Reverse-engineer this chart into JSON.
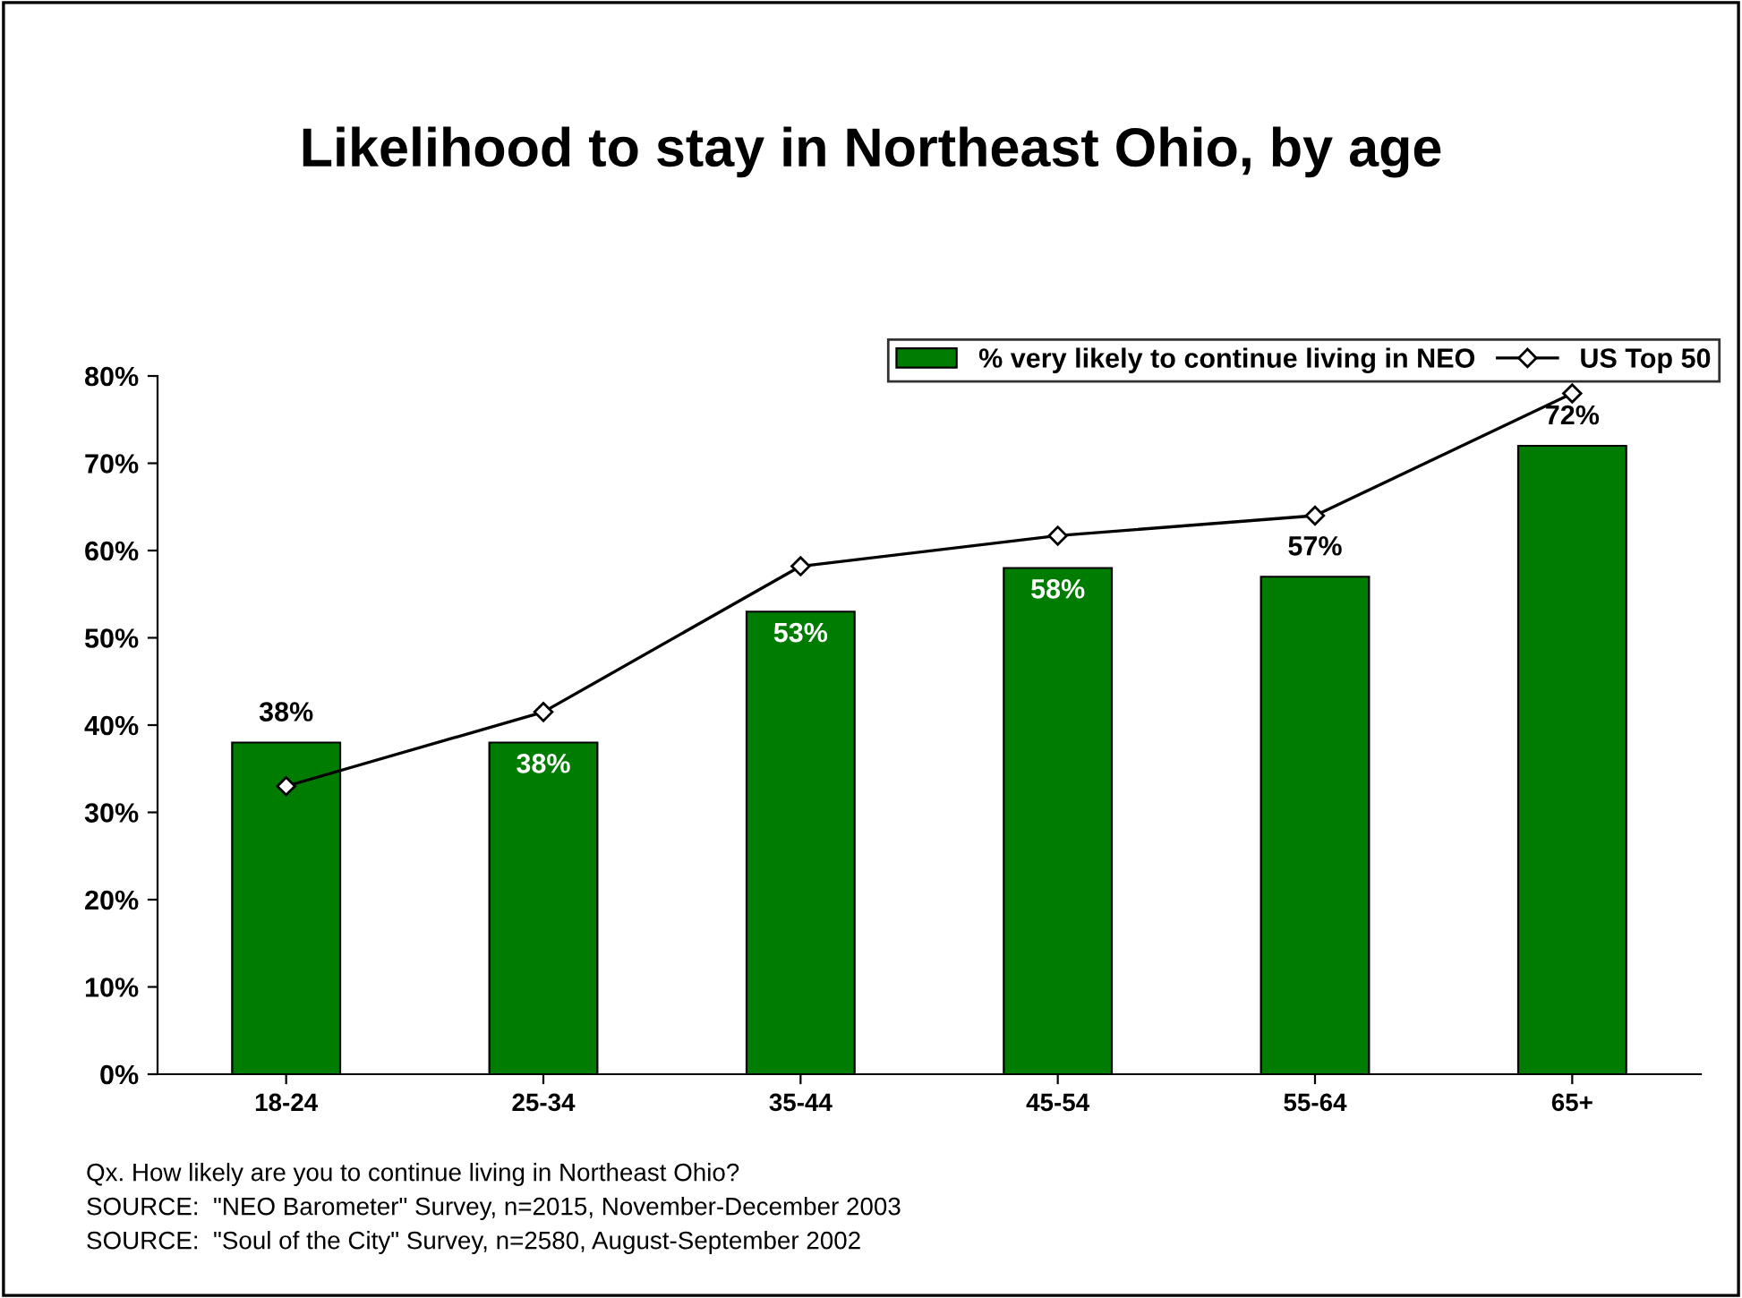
{
  "chart_data": {
    "type": "bar",
    "title": "Likelihood to stay in Northeast Ohio, by age",
    "categories": [
      "18-24",
      "25-34",
      "35-44",
      "45-54",
      "55-64",
      "65+"
    ],
    "series": [
      {
        "name": "% very likely to continue living in NEO",
        "color": "#007c00",
        "values": [
          38,
          38,
          53,
          58,
          57,
          72
        ],
        "value_labels": [
          "38%",
          "38%",
          "53%",
          "58%",
          "57%",
          "72%"
        ]
      },
      {
        "name": "US Top 50",
        "type": "line",
        "color": "#000000",
        "marker": "diamond",
        "values": [
          33,
          41.5,
          58.2,
          61.7,
          64,
          78
        ]
      }
    ],
    "ylim": [
      0,
      80
    ],
    "yticks": [
      {
        "value": 0,
        "label": "0%"
      },
      {
        "value": 10,
        "label": "10%"
      },
      {
        "value": 20,
        "label": "20%"
      },
      {
        "value": 30,
        "label": "30%"
      },
      {
        "value": 40,
        "label": "40%"
      },
      {
        "value": 50,
        "label": "50%"
      },
      {
        "value": 60,
        "label": "60%"
      },
      {
        "value": 70,
        "label": "70%"
      },
      {
        "value": 80,
        "label": "80%"
      }
    ],
    "legend": "top right",
    "grid": false,
    "annotations": [
      "Qx. How likely are you to continue living in Northeast Ohio?",
      "SOURCE:  \"NEO Barometer\" Survey, n=2015, November-December 2003",
      "SOURCE:  \"Soul of the City\" Survey, n=2580, August-September 2002"
    ]
  }
}
